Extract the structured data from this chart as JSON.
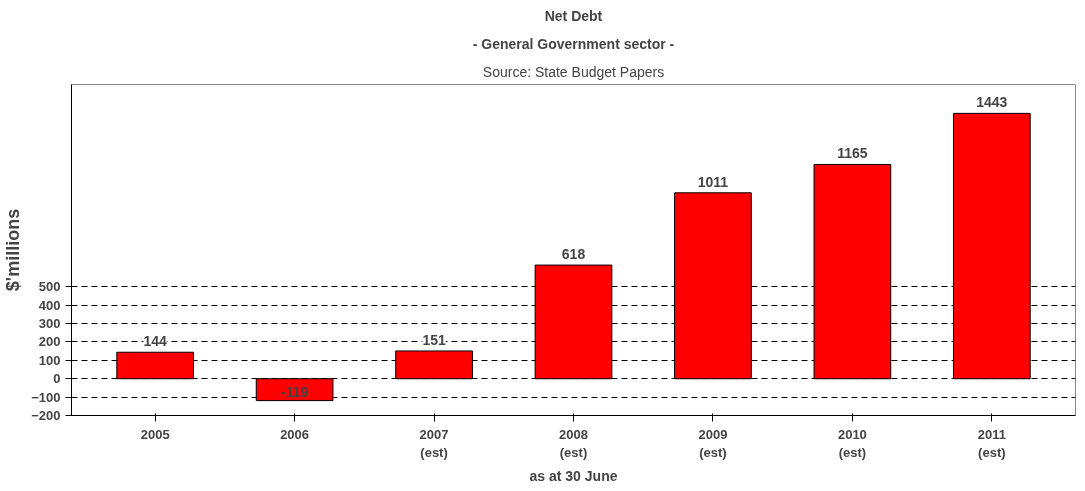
{
  "chart_data": {
    "type": "bar",
    "title": "Net Debt",
    "subtitle": "- General Government sector -",
    "annotations": [
      "Source: State Budget Papers"
    ],
    "xlabel": "as at 30 June",
    "ylabel": "$'millions",
    "categories": [
      "2005",
      "2006",
      "2007\n(est)",
      "2008\n(est)",
      "2009\n(est)",
      "2010\n(est)",
      "2011\n(est)"
    ],
    "values": [
      144,
      -119,
      151,
      618,
      1011,
      1165,
      1443
    ],
    "color": "#ff0000",
    "ylim": [
      -200,
      1600
    ],
    "yticks": [
      -200,
      -100,
      0,
      100,
      200,
      300,
      400,
      500
    ],
    "grid": "y",
    "data_labels": true
  }
}
